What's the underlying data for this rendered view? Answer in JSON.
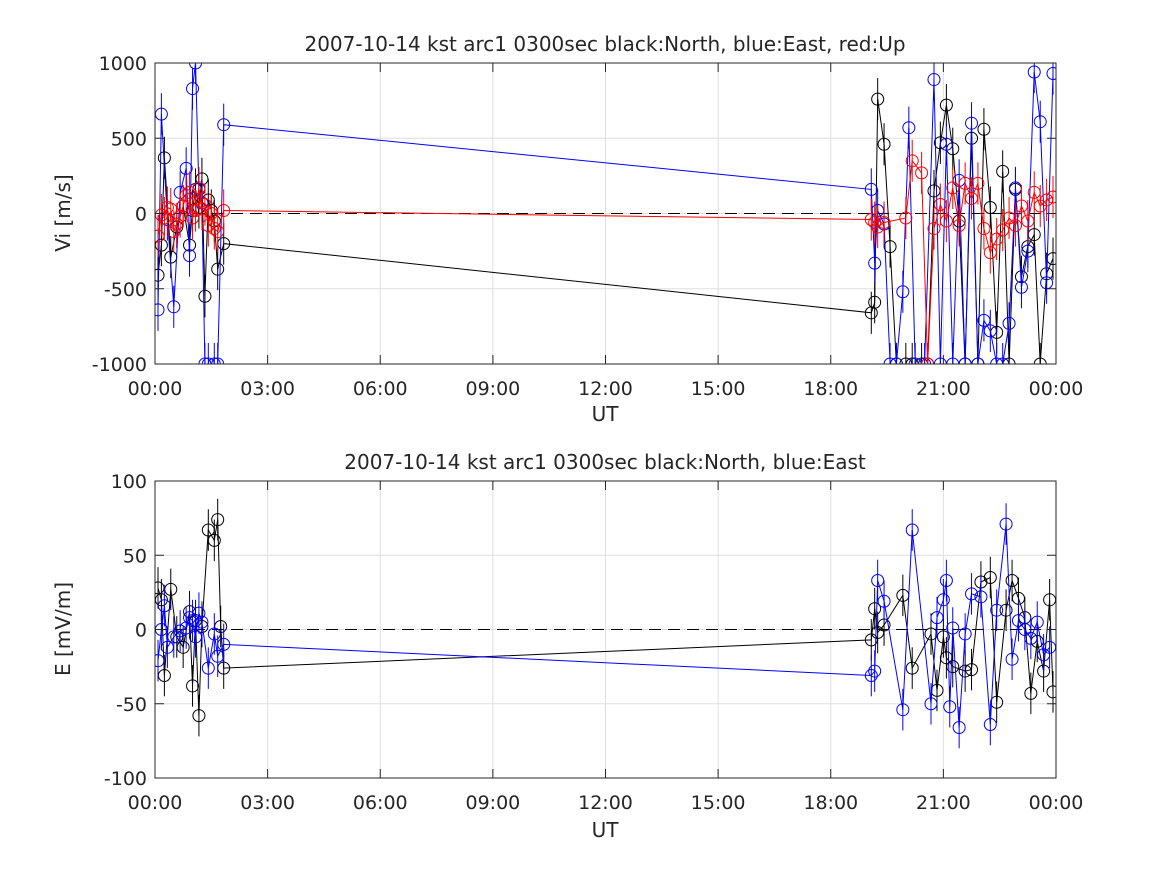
{
  "chart_data": [
    {
      "type": "line",
      "title": "2007-10-14 kst arc1 0300sec black:North, blue:East, red:Up",
      "xlabel": "UT",
      "ylabel": "Vi [m/s]",
      "xlim": [
        0,
        24
      ],
      "ylim": [
        -1000,
        1000
      ],
      "xticks": [
        0,
        3,
        6,
        9,
        12,
        15,
        18,
        21,
        24
      ],
      "xticklabels": [
        "00:00",
        "03:00",
        "06:00",
        "09:00",
        "12:00",
        "15:00",
        "18:00",
        "21:00",
        "00:00"
      ],
      "yticks": [
        -1000,
        -500,
        0,
        500,
        1000
      ],
      "yticklabels": [
        "-1000",
        "-500",
        "0",
        "500",
        "1000"
      ],
      "grid": true,
      "zero_line": "dashed",
      "series": [
        {
          "name": "North",
          "color": "#000000",
          "x": [
            0.08,
            0.17,
            0.25,
            0.42,
            0.58,
            0.75,
            0.92,
            1.0,
            1.08,
            1.17,
            1.25,
            1.33,
            1.42,
            1.5,
            1.58,
            1.67,
            1.83,
            19.08,
            19.17,
            19.25,
            19.42,
            19.58,
            19.75,
            20.0,
            20.17,
            20.42,
            20.58,
            20.75,
            20.92,
            21.08,
            21.25,
            21.42,
            21.58,
            21.75,
            21.92,
            22.08,
            22.25,
            22.42,
            22.58,
            22.75,
            22.92,
            23.08,
            23.25,
            23.42,
            23.58,
            23.75,
            23.92
          ],
          "y": [
            -410,
            -210,
            370,
            -290,
            -90,
            50,
            -210,
            20,
            160,
            40,
            230,
            -550,
            90,
            20,
            -50,
            -370,
            -200,
            -660,
            -590,
            760,
            460,
            -220,
            -1000,
            -1000,
            -1000,
            -1000,
            -1000,
            150,
            470,
            720,
            430,
            -50,
            -1000,
            500,
            -1000,
            560,
            40,
            -790,
            280,
            -1000,
            160,
            -420,
            -220,
            -140,
            -1000,
            -400,
            -300
          ]
        },
        {
          "name": "East",
          "color": "#0000ff",
          "x": [
            0.08,
            0.17,
            0.33,
            0.5,
            0.67,
            0.83,
            0.92,
            1.0,
            1.08,
            1.17,
            1.25,
            1.33,
            1.42,
            1.58,
            1.67,
            1.83,
            19.08,
            19.17,
            19.25,
            19.42,
            19.58,
            19.75,
            19.92,
            20.08,
            20.25,
            20.5,
            20.75,
            20.92,
            21.08,
            21.25,
            21.42,
            21.58,
            21.75,
            21.92,
            22.08,
            22.25,
            22.42,
            22.58,
            22.75,
            22.92,
            23.08,
            23.25,
            23.42,
            23.58,
            23.75,
            23.92
          ],
          "y": [
            -640,
            660,
            -40,
            -620,
            140,
            300,
            -280,
            830,
            1000,
            160,
            70,
            -1000,
            -1000,
            -1000,
            -1000,
            590,
            160,
            -330,
            20,
            -70,
            -1000,
            -1000,
            -520,
            570,
            -1000,
            -1000,
            890,
            -1000,
            460,
            -1000,
            220,
            -1000,
            600,
            -1000,
            -710,
            -780,
            -1000,
            -1000,
            -730,
            170,
            -490,
            -250,
            940,
            610,
            -460,
            930
          ]
        },
        {
          "name": "Up",
          "color": "#ff0000",
          "x": [
            0.08,
            0.17,
            0.25,
            0.33,
            0.42,
            0.5,
            0.58,
            0.67,
            0.75,
            0.83,
            0.92,
            1.0,
            1.08,
            1.17,
            1.25,
            1.33,
            1.42,
            1.5,
            1.58,
            1.67,
            1.83,
            19.08,
            19.17,
            19.25,
            19.42,
            20.0,
            20.17,
            20.42,
            20.58,
            20.75,
            20.92,
            21.08,
            21.25,
            21.42,
            21.58,
            21.75,
            21.92,
            22.08,
            22.25,
            22.42,
            22.58,
            22.75,
            22.92,
            23.08,
            23.25,
            23.42,
            23.58,
            23.75,
            23.92
          ],
          "y": [
            -150,
            -10,
            -30,
            40,
            30,
            -120,
            -70,
            -20,
            50,
            120,
            140,
            -30,
            20,
            170,
            30,
            60,
            -80,
            0,
            -100,
            -120,
            20,
            -40,
            -60,
            -90,
            -60,
            -30,
            350,
            270,
            -1000,
            -100,
            60,
            -50,
            170,
            -80,
            200,
            100,
            200,
            -100,
            -260,
            -170,
            -110,
            -30,
            -80,
            50,
            -50,
            140,
            50,
            90,
            110
          ]
        }
      ]
    },
    {
      "type": "line",
      "title": "2007-10-14 kst arc1 0300sec black:North, blue:East",
      "xlabel": "UT",
      "ylabel": "E [mV/m]",
      "xlim": [
        0,
        24
      ],
      "ylim": [
        -100,
        100
      ],
      "xticks": [
        0,
        3,
        6,
        9,
        12,
        15,
        18,
        21,
        24
      ],
      "xticklabels": [
        "00:00",
        "03:00",
        "06:00",
        "09:00",
        "12:00",
        "15:00",
        "18:00",
        "21:00",
        "00:00"
      ],
      "yticks": [
        -100,
        -50,
        0,
        50,
        100
      ],
      "yticklabels": [
        "-100",
        "-50",
        "0",
        "50",
        "100"
      ],
      "grid": true,
      "zero_line": "dashed",
      "series": [
        {
          "name": "North",
          "color": "#000000",
          "x": [
            0.08,
            0.17,
            0.25,
            0.42,
            0.58,
            0.75,
            0.92,
            1.0,
            1.08,
            1.17,
            1.25,
            1.42,
            1.58,
            1.67,
            1.75,
            1.83,
            19.08,
            19.17,
            19.25,
            19.42,
            19.92,
            20.17,
            20.67,
            20.83,
            21.0,
            21.08,
            21.25,
            21.58,
            21.75,
            22.0,
            22.25,
            22.42,
            22.67,
            22.83,
            23.0,
            23.17,
            23.33,
            23.5,
            23.67,
            23.83,
            23.92
          ],
          "y": [
            28,
            20,
            -31,
            27,
            -5,
            -12,
            12,
            -38,
            6,
            -58,
            2,
            67,
            60,
            74,
            2,
            -26,
            -7,
            14,
            -2,
            3,
            23,
            -26,
            -3,
            -41,
            -5,
            -19,
            -25,
            -28,
            -27,
            32,
            35,
            -49,
            13,
            33,
            21,
            8,
            -43,
            -8,
            -28,
            20,
            -42
          ]
        },
        {
          "name": "East",
          "color": "#0000ff",
          "x": [
            0.08,
            0.17,
            0.25,
            0.33,
            0.5,
            0.67,
            0.83,
            0.92,
            1.0,
            1.08,
            1.17,
            1.25,
            1.42,
            1.58,
            1.67,
            1.83,
            19.08,
            19.17,
            19.25,
            19.42,
            19.92,
            20.17,
            20.67,
            20.83,
            21.0,
            21.08,
            21.17,
            21.25,
            21.42,
            21.58,
            21.75,
            22.0,
            22.25,
            22.42,
            22.67,
            22.83,
            23.0,
            23.17,
            23.33,
            23.5,
            23.67,
            23.83
          ],
          "y": [
            -21,
            0,
            16,
            -12,
            -5,
            -1,
            1,
            8,
            6,
            -5,
            11,
            5,
            -26,
            -3,
            -18,
            -10,
            -31,
            -28,
            33,
            19,
            -54,
            67,
            -50,
            8,
            20,
            33,
            -52,
            1,
            -66,
            -3,
            24,
            22,
            -64,
            13,
            71,
            -20,
            6,
            0,
            -6,
            5,
            -17,
            -12
          ]
        }
      ]
    }
  ]
}
